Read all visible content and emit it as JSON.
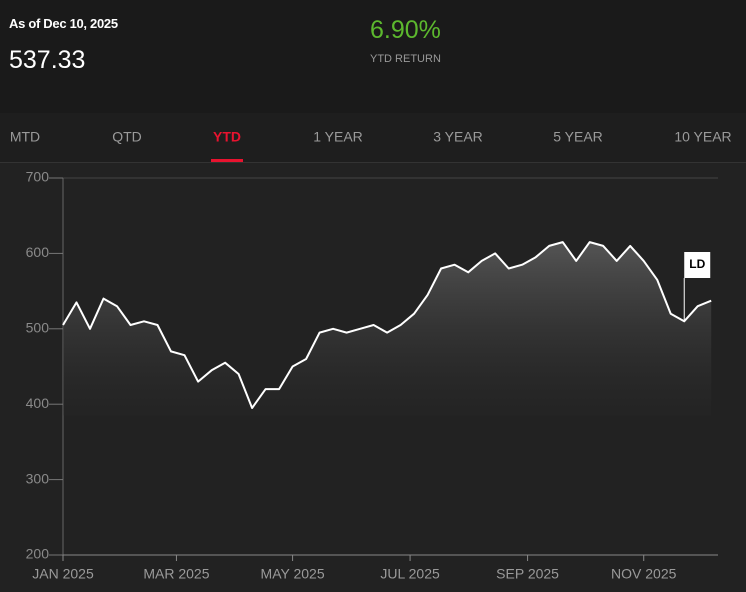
{
  "header": {
    "as_of": "As of Dec 10, 2025",
    "price": "537.33",
    "return_value": "6.90%",
    "return_label": "YTD RETURN"
  },
  "tabs": {
    "items": [
      "MTD",
      "QTD",
      "YTD",
      "1 YEAR",
      "3 YEAR",
      "5 YEAR",
      "10 YEAR"
    ],
    "active": 2
  },
  "chart_data": {
    "type": "line",
    "series": [
      {
        "name": "LD",
        "color": "#ffffff",
        "values": [
          505,
          535,
          500,
          540,
          530,
          505,
          510,
          505,
          470,
          465,
          430,
          445,
          455,
          440,
          395,
          420,
          420,
          450,
          460,
          495,
          500,
          495,
          500,
          505,
          495,
          505,
          520,
          545,
          580,
          585,
          575,
          590,
          600,
          580,
          585,
          595,
          610,
          615,
          590,
          615,
          610,
          590,
          610,
          590,
          565,
          520,
          510,
          530,
          537.33
        ]
      }
    ],
    "ylim": [
      200,
      700
    ],
    "yticks": [
      200,
      300,
      400,
      500,
      600,
      700
    ],
    "xlim": [
      0,
      48.5
    ],
    "xticks": [
      {
        "value": 0,
        "label": "JAN 2025"
      },
      {
        "value": 8.4,
        "label": "MAR 2025"
      },
      {
        "value": 17,
        "label": "MAY 2025"
      },
      {
        "value": 25.7,
        "label": "JUL 2025"
      },
      {
        "value": 34.4,
        "label": "SEP 2025"
      },
      {
        "value": 43,
        "label": "NOV 2025"
      }
    ],
    "annotation": {
      "x": 46,
      "text": "LD"
    }
  }
}
